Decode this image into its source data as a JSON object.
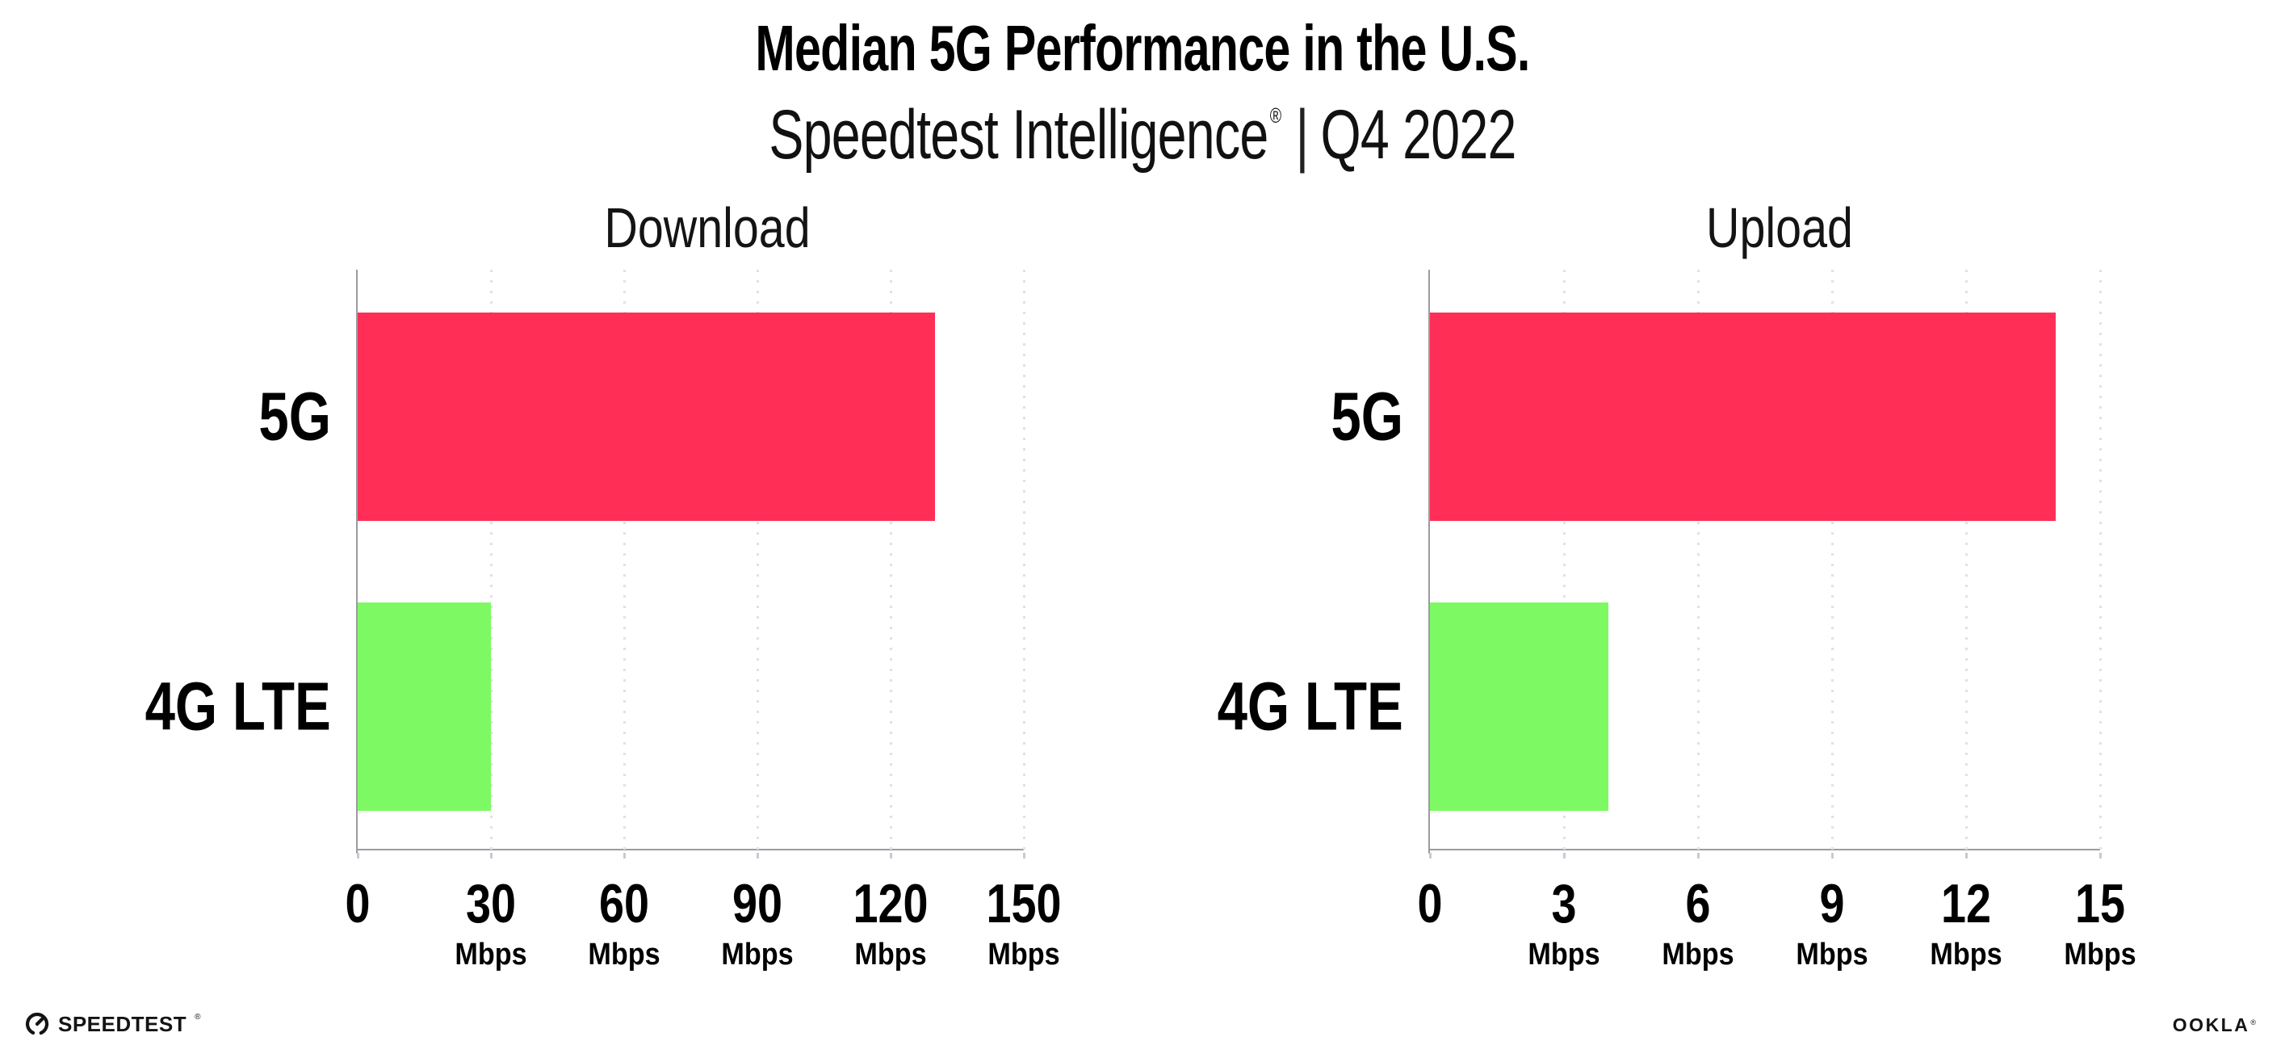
{
  "header": {
    "title": "Median 5G Performance in the U.S.",
    "subtitle_brand": "Speedtest Intelligence",
    "subtitle_reg_mark": "®",
    "subtitle_separator": "|",
    "subtitle_period": "Q4 2022"
  },
  "chart_data": [
    {
      "type": "bar",
      "orientation": "horizontal",
      "title": "Download",
      "categories": [
        "5G",
        "4G LTE"
      ],
      "values": [
        130,
        30
      ],
      "value_unit": "Mbps",
      "xlim": [
        0,
        150
      ],
      "xticks": [
        0,
        30,
        60,
        90,
        120,
        150
      ],
      "xtick_unit": "Mbps",
      "grid": "vertical-dotted",
      "bar_colors": [
        "#ff2e56",
        "#7dfa63"
      ]
    },
    {
      "type": "bar",
      "orientation": "horizontal",
      "title": "Upload",
      "categories": [
        "5G",
        "4G LTE"
      ],
      "values": [
        14,
        4
      ],
      "value_unit": "Mbps",
      "xlim": [
        0,
        15
      ],
      "xticks": [
        0,
        3,
        6,
        9,
        12,
        15
      ],
      "xtick_unit": "Mbps",
      "grid": "vertical-dotted",
      "bar_colors": [
        "#ff2e56",
        "#7dfa63"
      ]
    }
  ],
  "footer": {
    "speedtest_label": "SPEEDTEST",
    "speedtest_reg_mark": "®",
    "speedtest_icon": "speedtest-gauge-icon",
    "ookla_label": "OOKLA",
    "ookla_reg_mark": "®"
  },
  "colors": {
    "bar_5g": "#ff2e56",
    "bar_4g_lte": "#7dfa63",
    "axis": "#9b9ba1",
    "gridline": "#e0e0ea",
    "tick_mark": "#c9c9d4",
    "title_text": "#000000",
    "secondary_text": "#141414"
  }
}
